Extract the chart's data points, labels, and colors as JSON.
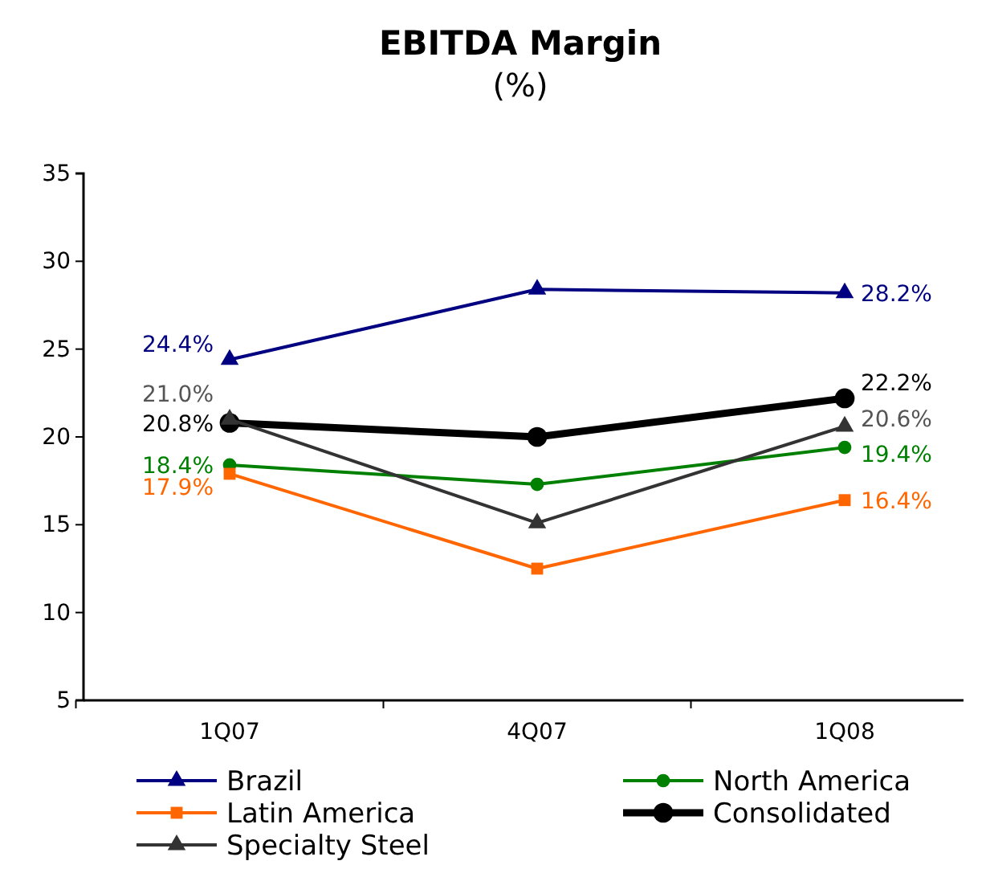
{
  "chart_data": {
    "type": "line",
    "title": "EBITDA Margin",
    "subtitle": "(%)",
    "categories": [
      "1Q07",
      "4Q07",
      "1Q08"
    ],
    "ylim": [
      5,
      35
    ],
    "yticks": [
      5,
      10,
      15,
      20,
      25,
      30,
      35
    ],
    "grid": false,
    "legend": "bottom",
    "series": [
      {
        "name": "Brazil",
        "color": "#000080",
        "marker": "triangle",
        "values": [
          24.4,
          28.4,
          28.2
        ],
        "value_labels": [
          "24.4%",
          null,
          "28.2%"
        ]
      },
      {
        "name": "North America",
        "color": "#008000",
        "marker": "circle",
        "values": [
          18.4,
          17.3,
          19.4
        ],
        "value_labels": [
          "18.4%",
          null,
          "19.4%"
        ]
      },
      {
        "name": "Latin America",
        "color": "#ff6600",
        "marker": "square",
        "values": [
          17.9,
          12.5,
          16.4
        ],
        "value_labels": [
          "17.9%",
          null,
          "16.4%"
        ]
      },
      {
        "name": "Consolidated",
        "color": "#000000",
        "marker": "circle",
        "values": [
          20.8,
          20.0,
          22.2
        ],
        "value_labels": [
          "20.8%",
          null,
          "22.2%"
        ]
      },
      {
        "name": "Specialty Steel",
        "color": "#333333",
        "marker": "triangle",
        "values": [
          21.0,
          15.1,
          20.6
        ],
        "value_labels": [
          "21.0%",
          null,
          "20.6%"
        ]
      }
    ]
  }
}
